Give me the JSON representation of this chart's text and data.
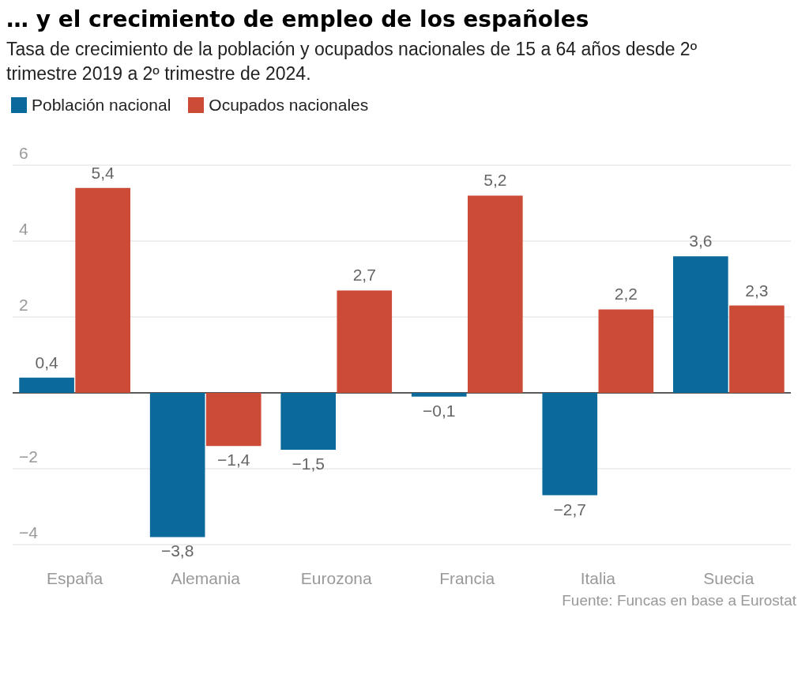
{
  "chart_data": {
    "type": "bar",
    "title": "… y el crecimiento de empleo de los españoles",
    "subtitle": "Tasa de crecimiento de la población y ocupados nacionales de 15 a 64 años desde 2º trimestre 2019 a 2º trimestre de 2024.",
    "categories": [
      "España",
      "Alemania",
      "Eurozona",
      "Francia",
      "Italia",
      "Suecia"
    ],
    "series": [
      {
        "name": "Población nacional",
        "color": "#0b6a9b",
        "values": [
          0.4,
          -3.8,
          -1.5,
          -0.1,
          -2.7,
          3.6
        ],
        "value_labels": [
          "0,4",
          "−3,8",
          "−1,5",
          "−0,1",
          "−2,7",
          "3,6"
        ]
      },
      {
        "name": "Ocupados nacionales",
        "color": "#cc4b37",
        "values": [
          5.4,
          -1.4,
          2.7,
          5.2,
          2.2,
          2.3
        ],
        "value_labels": [
          "5,4",
          "−1,4",
          "2,7",
          "5,2",
          "2,2",
          "2,3"
        ]
      }
    ],
    "ylim": [
      -4,
      6
    ],
    "yticks": [
      {
        "value": -4,
        "label": "−4"
      },
      {
        "value": -2,
        "label": "−2"
      },
      {
        "value": 0,
        "label": null
      },
      2,
      4,
      6
    ],
    "grid": "y",
    "legend": "top left",
    "annotations": [
      "Fuente: Funcas en base a Eurostat"
    ]
  }
}
